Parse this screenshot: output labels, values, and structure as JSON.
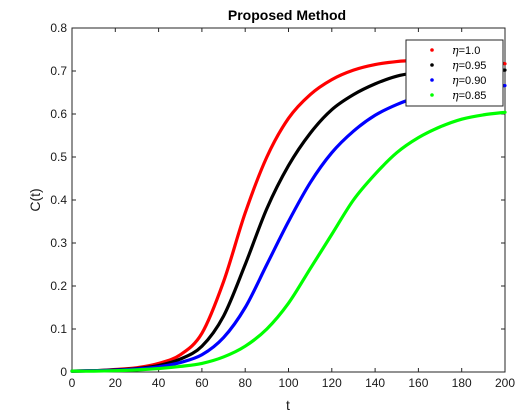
{
  "chart_data": {
    "type": "line",
    "title": "Proposed Method",
    "xlabel": "t",
    "ylabel": "C(t)",
    "xlim": [
      0,
      200
    ],
    "ylim": [
      0,
      0.8
    ],
    "xticks": [
      0,
      20,
      40,
      60,
      80,
      100,
      120,
      140,
      160,
      180,
      200
    ],
    "yticks": [
      0,
      0.1,
      0.2,
      0.3,
      0.4,
      0.5,
      0.6,
      0.7,
      0.8
    ],
    "grid": false,
    "legend_position": "top-right",
    "x": [
      0,
      10,
      20,
      30,
      40,
      50,
      60,
      70,
      80,
      90,
      100,
      110,
      120,
      130,
      140,
      150,
      160,
      170,
      180,
      190,
      200
    ],
    "series": [
      {
        "name": "η=1.0",
        "legend_symbol": "η",
        "legend_value": "=1.0",
        "color": "#ff0000",
        "values": [
          0.002,
          0.003,
          0.006,
          0.01,
          0.02,
          0.04,
          0.09,
          0.21,
          0.37,
          0.5,
          0.59,
          0.645,
          0.68,
          0.702,
          0.715,
          0.722,
          0.725,
          0.726,
          0.725,
          0.722,
          0.717
        ]
      },
      {
        "name": "η=0.95",
        "legend_symbol": "η",
        "legend_value": "=0.95",
        "color": "#000000",
        "values": [
          0.002,
          0.003,
          0.005,
          0.008,
          0.015,
          0.03,
          0.06,
          0.13,
          0.25,
          0.38,
          0.48,
          0.555,
          0.61,
          0.645,
          0.67,
          0.688,
          0.697,
          0.703,
          0.705,
          0.705,
          0.702
        ]
      },
      {
        "name": "η=0.90",
        "legend_symbol": "η",
        "legend_value": "=0.90",
        "color": "#0000ff",
        "values": [
          0.002,
          0.003,
          0.004,
          0.007,
          0.012,
          0.022,
          0.04,
          0.08,
          0.15,
          0.25,
          0.35,
          0.44,
          0.51,
          0.56,
          0.597,
          0.622,
          0.64,
          0.652,
          0.66,
          0.664,
          0.666
        ]
      },
      {
        "name": "η=0.85",
        "legend_symbol": "η",
        "legend_value": "=0.85",
        "color": "#00ff00",
        "values": [
          0.002,
          0.002,
          0.003,
          0.005,
          0.008,
          0.013,
          0.02,
          0.035,
          0.06,
          0.1,
          0.16,
          0.24,
          0.32,
          0.4,
          0.46,
          0.51,
          0.545,
          0.57,
          0.588,
          0.598,
          0.604
        ]
      }
    ]
  }
}
